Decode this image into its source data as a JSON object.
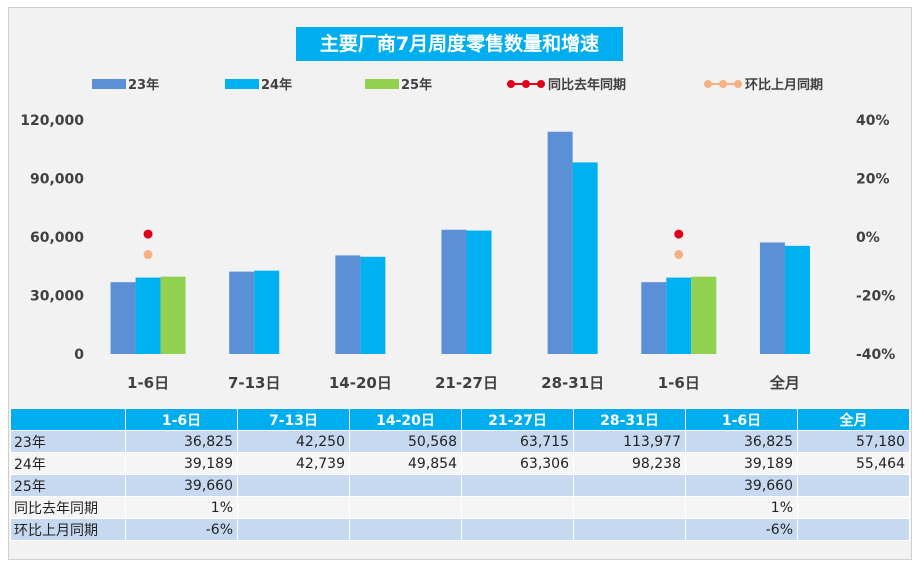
{
  "chart_data": {
    "type": "bar",
    "title": "主要厂商7月周度零售数量和增速",
    "categories": [
      "1-6日",
      "7-13日",
      "14-20日",
      "21-27日",
      "28-31日",
      "1-6日",
      "全月"
    ],
    "series": [
      {
        "name": "23年",
        "color": "#5b8fd6",
        "values": [
          36825,
          42250,
          50568,
          63715,
          113977,
          36825,
          57180
        ]
      },
      {
        "name": "24年",
        "color": "#00b0f0",
        "values": [
          39189,
          42739,
          49854,
          63306,
          98238,
          39189,
          55464
        ]
      },
      {
        "name": "25年",
        "color": "#92d050",
        "values": [
          39660,
          null,
          null,
          null,
          null,
          39660,
          null
        ]
      }
    ],
    "rate_series": [
      {
        "name": "同比去年同期",
        "color": "#e0001b",
        "values": [
          1,
          null,
          null,
          null,
          null,
          1,
          null
        ]
      },
      {
        "name": "环比上月同期",
        "color": "#f4b183",
        "values": [
          -6,
          null,
          null,
          null,
          null,
          -6,
          null
        ]
      }
    ],
    "y_left": {
      "min": 0,
      "max": 120000,
      "ticks": [
        0,
        30000,
        60000,
        90000,
        120000
      ],
      "tick_labels": [
        "0",
        "30,000",
        "60,000",
        "90,000",
        "120,000"
      ]
    },
    "y_right": {
      "min": -40,
      "max": 40,
      "ticks": [
        -40,
        -20,
        0,
        20,
        40
      ],
      "tick_labels": [
        "-40%",
        "-20%",
        "0%",
        "20%",
        "40%"
      ]
    },
    "legend_position": "top"
  },
  "table": {
    "header": [
      "",
      "1-6日",
      "7-13日",
      "14-20日",
      "21-27日",
      "28-31日",
      "1-6日",
      "全月"
    ],
    "rows": [
      {
        "label": "23年",
        "cells": [
          "36,825",
          "42,250",
          "50,568",
          "63,715",
          "113,977",
          "36,825",
          "57,180"
        ]
      },
      {
        "label": "24年",
        "cells": [
          "39,189",
          "42,739",
          "49,854",
          "63,306",
          "98,238",
          "39,189",
          "55,464"
        ]
      },
      {
        "label": "25年",
        "cells": [
          "39,660",
          "",
          "",
          "",
          "",
          "39,660",
          ""
        ]
      },
      {
        "label": "同比去年同期",
        "cells": [
          "1%",
          "",
          "",
          "",
          "",
          "1%",
          ""
        ]
      },
      {
        "label": "环比上月同期",
        "cells": [
          "-6%",
          "",
          "",
          "",
          "",
          "-6%",
          ""
        ]
      }
    ]
  }
}
